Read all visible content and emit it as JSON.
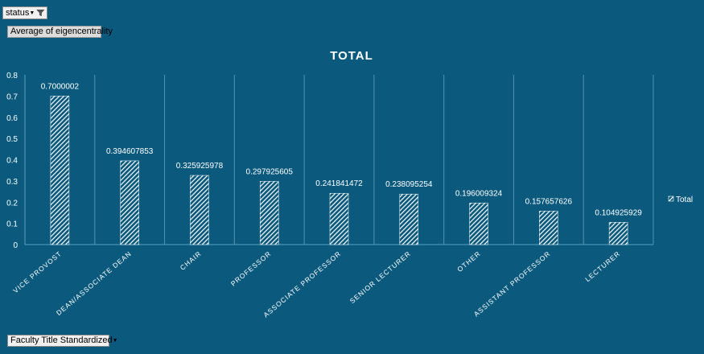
{
  "filter": {
    "label": "status"
  },
  "value_field": {
    "label": "Average of eigencentrality"
  },
  "axis_field": {
    "label": "Faculty  Title Standardized"
  },
  "colors": {
    "background": "#0b5a7d",
    "bar": "#ffffff",
    "grid": "#5aa0bf",
    "text": "#ffffff"
  },
  "chart_data": {
    "type": "bar",
    "title": "TOTAL",
    "xlabel": "",
    "ylabel": "",
    "ylim": [
      0,
      0.8
    ],
    "yticks": [
      "0",
      "0.1",
      "0.2",
      "0.3",
      "0.4",
      "0.5",
      "0.6",
      "0.7",
      "0.8"
    ],
    "categories": [
      "VICE PROVOST",
      "DEAN/ASSOCIATE DEAN",
      "CHAIR",
      "PROFESSOR",
      "ASSOCIATE PROFESSOR",
      "SENIOR LECTURER",
      "OTHER",
      "ASSISTANT PROFESSOR",
      "LECTURER"
    ],
    "series": [
      {
        "name": "Total",
        "values": [
          0.7000002,
          0.394607853,
          0.325925978,
          0.297925605,
          0.241841472,
          0.238095254,
          0.196009324,
          0.157657626,
          0.104925929
        ],
        "labels": [
          "0.7000002",
          "0.394607853",
          "0.325925978",
          "0.297925605",
          "0.241841472",
          "0.238095254",
          "0.196009324",
          "0.157657626",
          "0.104925929"
        ]
      }
    ],
    "legend": "right"
  }
}
